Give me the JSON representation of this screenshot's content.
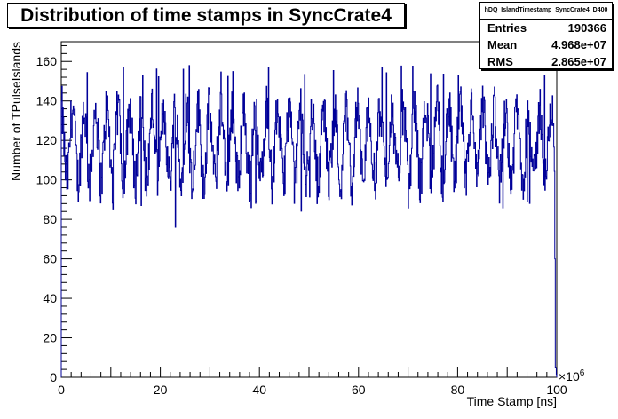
{
  "title": "Distribution of time stamps in SyncCrate4",
  "stats": {
    "name": "hDQ_IslandTimestamp_SyncCrate4_D400",
    "rows": [
      {
        "label": "Entries",
        "value": "190366"
      },
      {
        "label": "Mean",
        "value": "4.968e+07"
      },
      {
        "label": "RMS",
        "value": "2.865e+07"
      }
    ]
  },
  "chart_data": {
    "type": "histogram",
    "title": "Distribution of time stamps in SyncCrate4",
    "xlabel": "Time Stamp [ns]",
    "ylabel": "Number of TPulseIslands",
    "x_exponent_label": "×10",
    "x_exponent": "6",
    "xlim": [
      0,
      100
    ],
    "ylim": [
      0,
      170
    ],
    "x_ticks": [
      "0",
      "20",
      "40",
      "60",
      "80",
      "100"
    ],
    "y_ticks": [
      "0",
      "20",
      "40",
      "60",
      "80",
      "100",
      "120",
      "140",
      "160"
    ],
    "line_color": "#000099",
    "entries": 190366,
    "mean": 49680000.0,
    "rms": 28650000.0,
    "bins": 1000,
    "oscillation_period_x": 2.3,
    "plateau_end_x": 99.6,
    "peak_max": 158,
    "trough_min": 76
  }
}
